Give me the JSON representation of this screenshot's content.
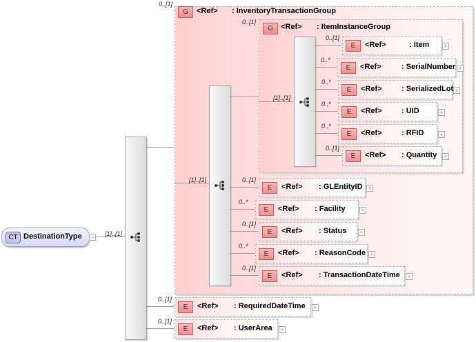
{
  "root": {
    "badge": "CT",
    "name": "DestinationType",
    "occurrence": "[1]..[1]"
  },
  "outer_group": {
    "badge": "G",
    "ref": "<Ref>",
    "name": ": InventoryTransactionGroup",
    "occurrence": "0..[1]",
    "sequence_occurrence": "[1]..[1]"
  },
  "inner_group": {
    "badge": "G",
    "ref": "<Ref>",
    "name": ": ItemInstanceGroup",
    "occurrence": "0..[1]",
    "sequence_occurrence": "[1]..[1]"
  },
  "inner_elements": [
    {
      "badge": "E",
      "ref": "<Ref>",
      "name": ": Item",
      "occurrence": "0..[1]"
    },
    {
      "badge": "E",
      "ref": "<Ref>",
      "name": ": SerialNumber",
      "occurrence": "0..*"
    },
    {
      "badge": "E",
      "ref": "<Ref>",
      "name": ": SerializedLot",
      "occurrence": "0..*"
    },
    {
      "badge": "E",
      "ref": "<Ref>",
      "name": ": UID",
      "occurrence": "0..*"
    },
    {
      "badge": "E",
      "ref": "<Ref>",
      "name": ": RFID",
      "occurrence": "0..*"
    },
    {
      "badge": "E",
      "ref": "<Ref>",
      "name": ": Quantity",
      "occurrence": "0..[1]"
    }
  ],
  "group_elements": [
    {
      "badge": "E",
      "ref": "<Ref>",
      "name": ": GLEntityID",
      "occurrence": "0..[1]"
    },
    {
      "badge": "E",
      "ref": "<Ref>",
      "name": ": Facility",
      "occurrence": "0..*"
    },
    {
      "badge": "E",
      "ref": "<Ref>",
      "name": ": Status",
      "occurrence": "0..[1]"
    },
    {
      "badge": "E",
      "ref": "<Ref>",
      "name": ": ReasonCode",
      "occurrence": "0..*"
    },
    {
      "badge": "E",
      "ref": "<Ref>",
      "name": ": TransactionDateTime",
      "occurrence": "0..[1]"
    }
  ],
  "root_elements": [
    {
      "badge": "E",
      "ref": "<Ref>",
      "name": ": RequiredDateTime",
      "occurrence": "0..[1]"
    },
    {
      "badge": "E",
      "ref": "<Ref>",
      "name": ": UserArea",
      "occurrence": "0..[1]"
    }
  ]
}
